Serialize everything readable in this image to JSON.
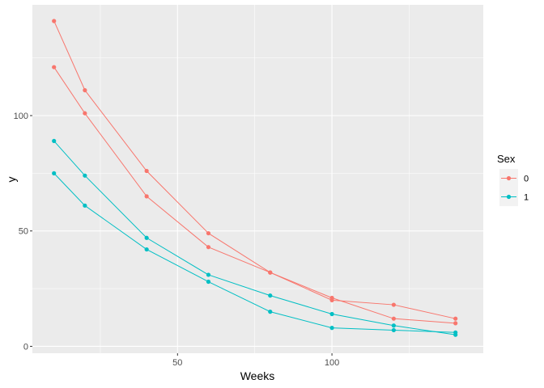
{
  "chart_data": {
    "type": "line",
    "xlabel": "Weeks",
    "ylabel": "y",
    "xlim": [
      3,
      149
    ],
    "ylim": [
      -3,
      148
    ],
    "x_ticks": [
      50,
      100
    ],
    "y_ticks": [
      0,
      50,
      100
    ],
    "x_minor": [
      25,
      75,
      125
    ],
    "y_minor": [
      25,
      75,
      125
    ],
    "grid": true,
    "legend": {
      "title": "Sex",
      "position": "right",
      "entries": [
        {
          "label": "0",
          "color": "#F8766D"
        },
        {
          "label": "1",
          "color": "#00BFC4"
        }
      ]
    },
    "series": [
      {
        "group": "0",
        "color": "#F8766D",
        "x": [
          10,
          20,
          40,
          60,
          80,
          100,
          120,
          140
        ],
        "y": [
          141,
          111,
          76,
          49,
          32,
          20,
          18,
          12
        ]
      },
      {
        "group": "0",
        "color": "#F8766D",
        "x": [
          10,
          20,
          40,
          60,
          80,
          100,
          120,
          140
        ],
        "y": [
          121,
          101,
          65,
          43,
          32,
          21,
          12,
          10
        ]
      },
      {
        "group": "1",
        "color": "#00BFC4",
        "x": [
          10,
          20,
          40,
          60,
          80,
          100,
          120,
          140
        ],
        "y": [
          89,
          74,
          47,
          31,
          22,
          14,
          9,
          5
        ]
      },
      {
        "group": "1",
        "color": "#00BFC4",
        "x": [
          10,
          20,
          40,
          60,
          80,
          100,
          120,
          140
        ],
        "y": [
          75,
          61,
          42,
          28,
          15,
          8,
          7,
          6
        ]
      }
    ]
  }
}
